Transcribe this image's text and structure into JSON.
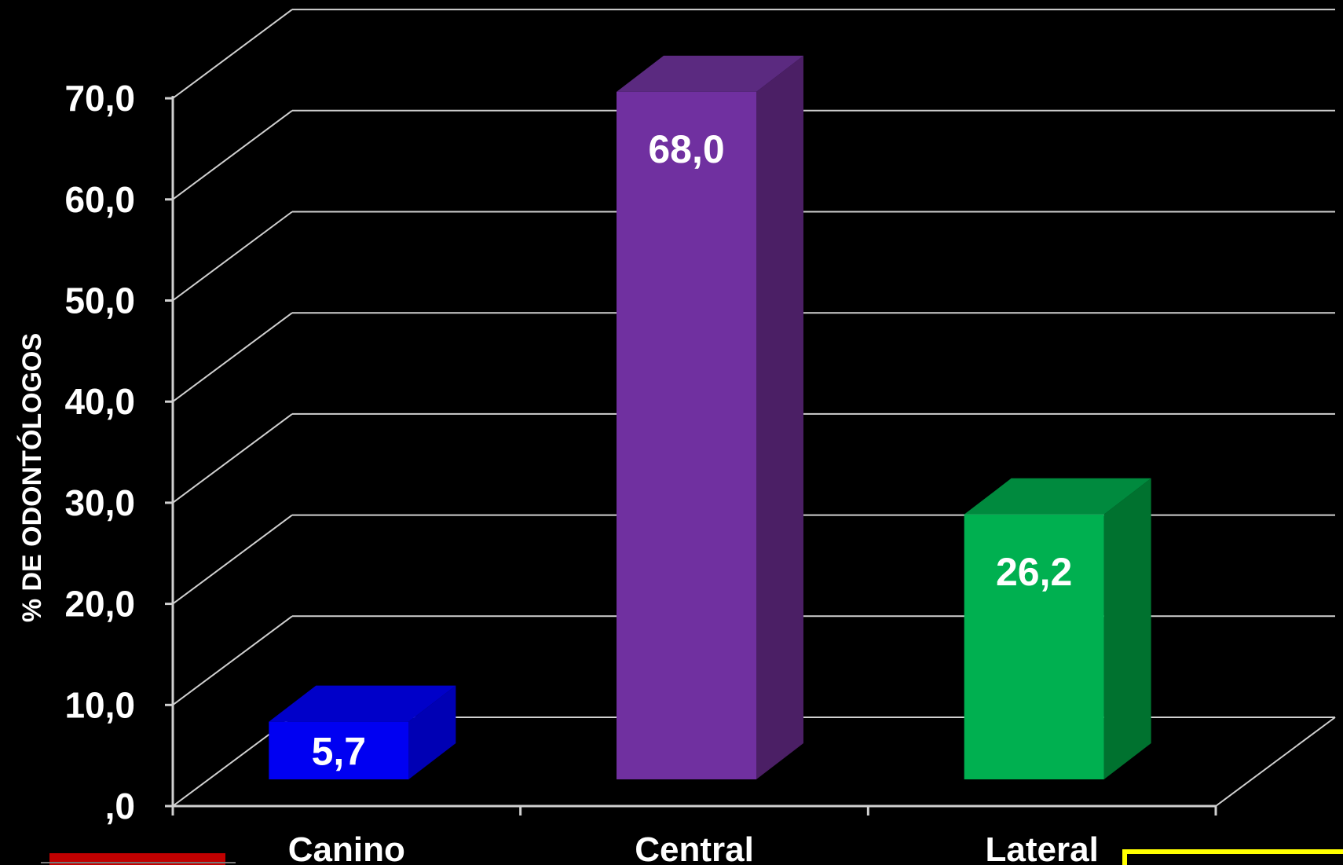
{
  "chart_data": {
    "type": "bar",
    "style": "3d-column",
    "ylabel": "% DE ODONTÓLOGOS",
    "ylim": [
      0,
      70
    ],
    "yticks": [
      ",0",
      "10,0",
      "20,0",
      "30,0",
      "40,0",
      "50,0",
      "60,0",
      "70,0"
    ],
    "grid": true,
    "categories": [
      "Canino",
      "Central",
      "Lateral"
    ],
    "values": [
      5.7,
      68.0,
      26.2
    ],
    "data_labels": [
      "5,7",
      "68,0",
      "26,2"
    ],
    "colors": {
      "Canino": {
        "front": "#0000f2",
        "side": "#0000b4",
        "top": "#0000c9"
      },
      "Central": {
        "front": "#7030a0",
        "side": "#4b1f65",
        "top": "#5b2a80"
      },
      "Lateral": {
        "front": "#00b050",
        "side": "#00722f",
        "top": "#008a3e"
      }
    },
    "background": "#000000",
    "gridline_color": "#d0d0d0",
    "text_color": "#ffffff"
  },
  "decorations": {
    "red_box_color": "#c00000",
    "yellow_box_color": "#ffff00"
  }
}
